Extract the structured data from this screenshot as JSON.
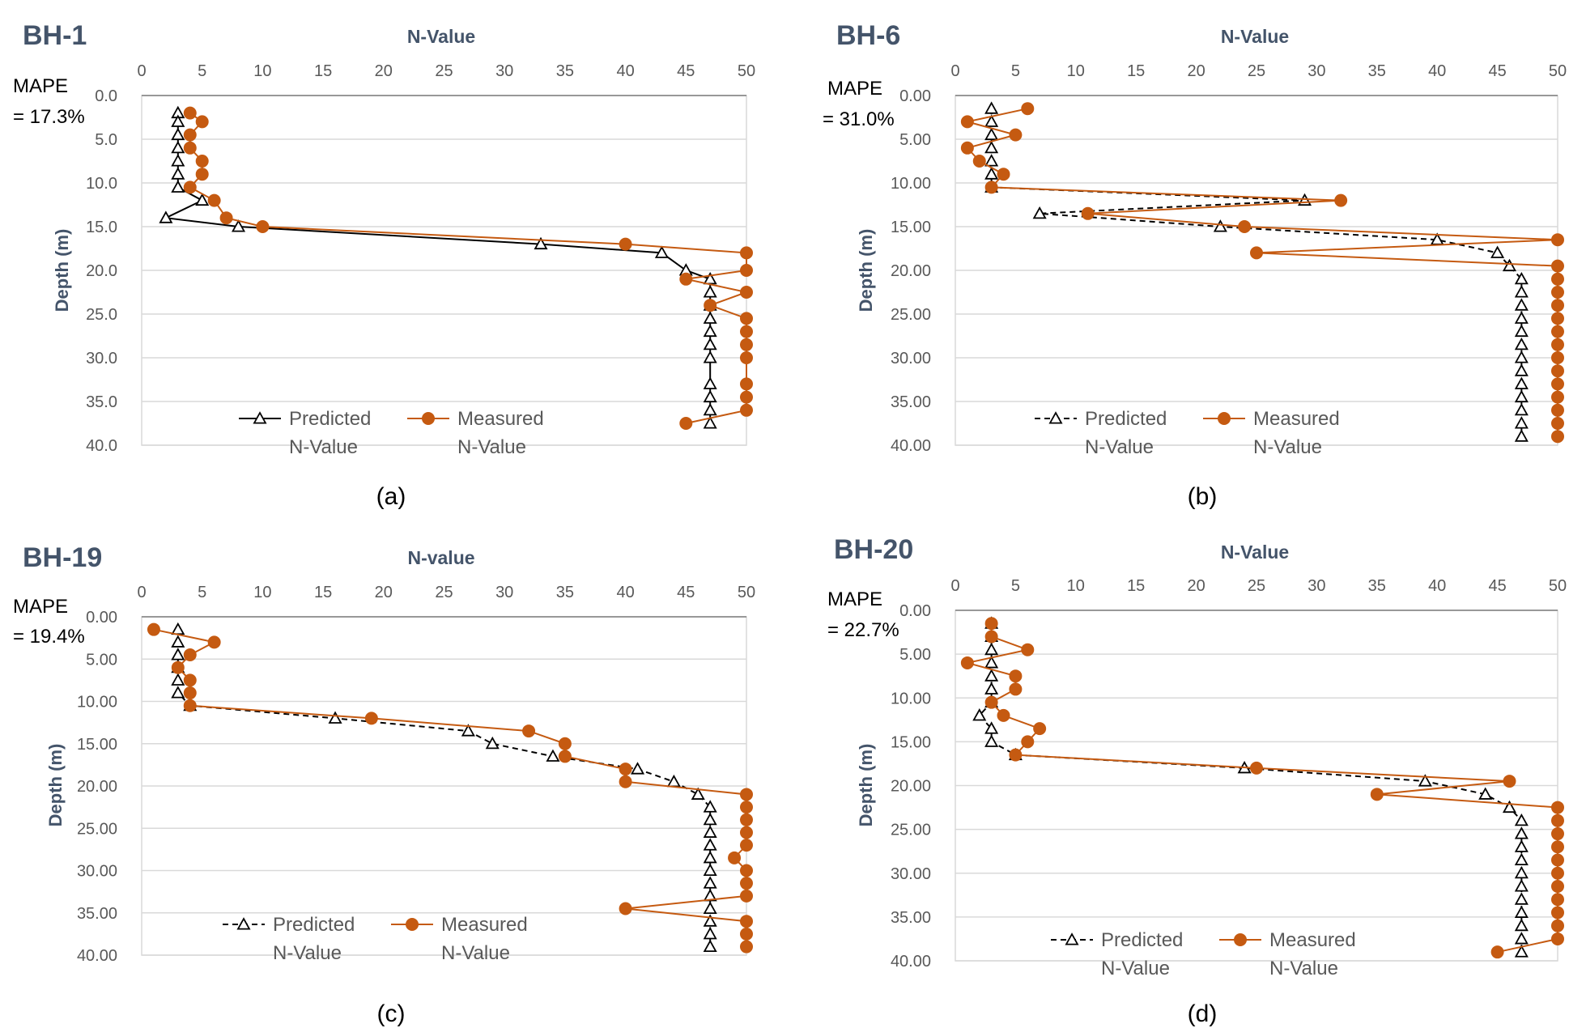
{
  "chart_data": [
    {
      "type": "line",
      "panel_label": "BH-1",
      "caption": "(a)",
      "title": "N-Value",
      "xlabel": "N-Value",
      "ylabel": "Depth (m)",
      "xlim": [
        0,
        50
      ],
      "ylim": [
        0,
        40
      ],
      "x_ticks": [
        "0",
        "5",
        "10",
        "15",
        "20",
        "25",
        "30",
        "35",
        "40",
        "45",
        "50"
      ],
      "y_ticks": [
        "0.0",
        "5.0",
        "10.0",
        "15.0",
        "20.0",
        "25.0",
        "30.0",
        "35.0",
        "40.0"
      ],
      "mape": [
        "MAPE",
        "= 17.3%"
      ],
      "grid": true,
      "legend_position": "bottom-center",
      "series": [
        {
          "name": [
            "Predicted",
            "N-Value"
          ],
          "style": "solid-black-triangle",
          "x": [
            3,
            3,
            3,
            3,
            3,
            3,
            3,
            5,
            2,
            8,
            33,
            43,
            45,
            47,
            47,
            47,
            47,
            47,
            47,
            47,
            47,
            47,
            47,
            47
          ],
          "y": [
            2,
            3,
            4.5,
            6,
            7.5,
            9,
            10.5,
            12,
            14,
            15,
            17,
            18,
            20,
            21,
            22.5,
            24,
            25.5,
            27,
            28.5,
            30,
            33,
            34.5,
            36,
            37.5
          ]
        },
        {
          "name": [
            "Measured",
            "N-Value"
          ],
          "style": "orange-circle",
          "x": [
            4,
            5,
            4,
            4,
            5,
            5,
            4,
            6,
            7,
            10,
            40,
            50,
            50,
            45,
            50,
            47,
            50,
            50,
            50,
            50,
            50,
            50,
            50,
            45
          ],
          "y": [
            2,
            3,
            4.5,
            6,
            7.5,
            9,
            10.5,
            12,
            14,
            15,
            17,
            18,
            20,
            21,
            22.5,
            24,
            25.5,
            27,
            28.5,
            30,
            33,
            34.5,
            36,
            37.5
          ]
        }
      ]
    },
    {
      "type": "line",
      "panel_label": "BH-6",
      "caption": "(b)",
      "title": "N-Value",
      "xlabel": "N-Value",
      "ylabel": "Depth (m)",
      "xlim": [
        0,
        50
      ],
      "ylim": [
        0,
        40
      ],
      "x_ticks": [
        "0",
        "5",
        "10",
        "15",
        "20",
        "25",
        "30",
        "35",
        "40",
        "45",
        "50"
      ],
      "y_ticks": [
        "0.00",
        "5.00",
        "10.00",
        "15.00",
        "20.00",
        "25.00",
        "30.00",
        "35.00",
        "40.00"
      ],
      "mape": [
        "MAPE",
        "= 31.0%"
      ],
      "grid": true,
      "legend_position": "bottom-center",
      "series": [
        {
          "name": [
            "Predicted",
            "N-Value"
          ],
          "style": "dashed-black-triangle",
          "x": [
            3,
            3,
            3,
            3,
            3,
            3,
            3,
            29,
            7,
            22,
            40,
            45,
            46,
            47,
            47,
            47,
            47,
            47,
            47,
            47,
            47,
            47,
            47,
            47,
            47,
            47
          ],
          "y": [
            1.5,
            3,
            4.5,
            6,
            7.5,
            9,
            10.5,
            12,
            13.5,
            15,
            16.5,
            18,
            19.5,
            21,
            22.5,
            24,
            25.5,
            27,
            28.5,
            30,
            31.5,
            33,
            34.5,
            36,
            37.5,
            39
          ]
        },
        {
          "name": [
            "Measured",
            "N-Value"
          ],
          "style": "orange-circle",
          "x": [
            6,
            1,
            5,
            1,
            2,
            4,
            3,
            32,
            11,
            24,
            50,
            25,
            50,
            50,
            50,
            50,
            50,
            50,
            50,
            50,
            50,
            50,
            50,
            50,
            50,
            50
          ],
          "y": [
            1.5,
            3,
            4.5,
            6,
            7.5,
            9,
            10.5,
            12,
            13.5,
            15,
            16.5,
            18,
            19.5,
            21,
            22.5,
            24,
            25.5,
            27,
            28.5,
            30,
            31.5,
            33,
            34.5,
            36,
            37.5,
            39
          ]
        }
      ]
    },
    {
      "type": "line",
      "panel_label": "BH-19",
      "caption": "(c)",
      "title": "N-value",
      "xlabel": "N-Value",
      "ylabel": "Depth (m)",
      "xlim": [
        0,
        50
      ],
      "ylim": [
        0,
        40
      ],
      "x_ticks": [
        "0",
        "5",
        "10",
        "15",
        "20",
        "25",
        "30",
        "35",
        "40",
        "45",
        "50"
      ],
      "y_ticks": [
        "0.00",
        "5.00",
        "10.00",
        "15.00",
        "20.00",
        "25.00",
        "30.00",
        "35.00",
        "40.00"
      ],
      "mape": [
        "MAPE",
        "= 19.4%"
      ],
      "grid": true,
      "legend_position": "bottom-center",
      "series": [
        {
          "name": [
            "Predicted",
            "N-Value"
          ],
          "style": "dashed-black-triangle",
          "x": [
            3,
            3,
            3,
            3,
            3,
            3,
            4,
            16,
            27,
            29,
            34,
            41,
            44,
            46,
            47,
            47,
            47,
            47,
            47,
            47,
            47,
            47,
            47,
            47,
            47,
            47
          ],
          "y": [
            1.5,
            3,
            4.5,
            6,
            7.5,
            9,
            10.5,
            12,
            13.5,
            15,
            16.5,
            18,
            19.5,
            21,
            22.5,
            24,
            25.5,
            27,
            28.5,
            30,
            31.5,
            33,
            34.5,
            36,
            37.5,
            39
          ]
        },
        {
          "name": [
            "Measured",
            "N-Value"
          ],
          "style": "orange-circle",
          "x": [
            1,
            6,
            4,
            3,
            4,
            4,
            4,
            19,
            32,
            35,
            35,
            40,
            40,
            50,
            50,
            50,
            50,
            50,
            49,
            50,
            50,
            50,
            40,
            50,
            50,
            50
          ],
          "y": [
            1.5,
            3,
            4.5,
            6,
            7.5,
            9,
            10.5,
            12,
            13.5,
            15,
            16.5,
            18,
            19.5,
            21,
            22.5,
            24,
            25.5,
            27,
            28.5,
            30,
            31.5,
            33,
            34.5,
            36,
            37.5,
            39
          ]
        }
      ]
    },
    {
      "type": "line",
      "panel_label": "BH-20",
      "caption": "(d)",
      "title": "N-Value",
      "xlabel": "N-Value",
      "ylabel": "Depth (m)",
      "xlim": [
        0,
        50
      ],
      "ylim": [
        0,
        40
      ],
      "x_ticks": [
        "0",
        "5",
        "10",
        "15",
        "20",
        "25",
        "30",
        "35",
        "40",
        "45",
        "50"
      ],
      "y_ticks": [
        "0.00",
        "5.00",
        "10.00",
        "15.00",
        "20.00",
        "25.00",
        "30.00",
        "35.00",
        "40.00"
      ],
      "mape": [
        "MAPE",
        "= 22.7%"
      ],
      "grid": true,
      "legend_position": "bottom-center",
      "series": [
        {
          "name": [
            "Predicted",
            "N-Value"
          ],
          "style": "dashed-black-triangle",
          "x": [
            3,
            3,
            3,
            3,
            3,
            3,
            3,
            2,
            3,
            3,
            5,
            24,
            39,
            44,
            46,
            47,
            47,
            47,
            47,
            47,
            47,
            47,
            47,
            47,
            47,
            47
          ],
          "y": [
            1.5,
            3,
            4.5,
            6,
            7.5,
            9,
            10.5,
            12,
            13.5,
            15,
            16.5,
            18,
            19.5,
            21,
            22.5,
            24,
            25.5,
            27,
            28.5,
            30,
            31.5,
            33,
            34.5,
            36,
            37.5,
            39
          ]
        },
        {
          "name": [
            "Measured",
            "N-Value"
          ],
          "style": "orange-circle",
          "x": [
            3,
            3,
            6,
            1,
            5,
            5,
            3,
            4,
            7,
            6,
            5,
            25,
            46,
            35,
            50,
            50,
            50,
            50,
            50,
            50,
            50,
            50,
            50,
            50,
            50,
            45
          ],
          "y": [
            1.5,
            3,
            4.5,
            6,
            7.5,
            9,
            10.5,
            12,
            13.5,
            15,
            16.5,
            18,
            19.5,
            21,
            22.5,
            24,
            25.5,
            27,
            28.5,
            30,
            31.5,
            33,
            34.5,
            36,
            37.5,
            39
          ]
        }
      ]
    }
  ]
}
